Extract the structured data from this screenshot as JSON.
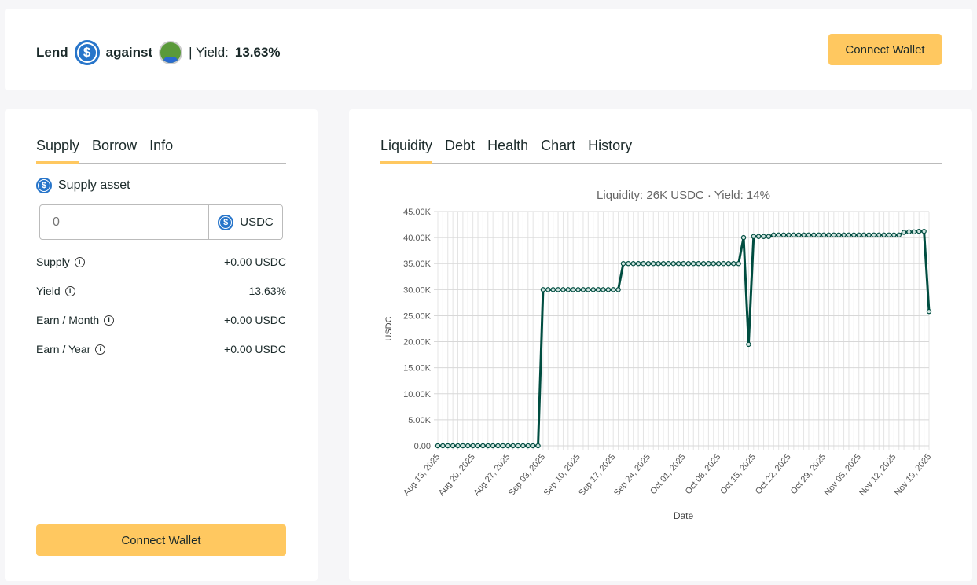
{
  "header": {
    "lend": "Lend",
    "against": "against",
    "yield_label": "| Yield:",
    "yield_value": "13.63%",
    "connect_wallet": "Connect Wallet"
  },
  "left": {
    "tabs": [
      "Supply",
      "Borrow",
      "Info"
    ],
    "supply_asset": "Supply asset",
    "input_placeholder": "0",
    "currency": "USDC",
    "rows": [
      {
        "label": "Supply",
        "value": "+0.00 USDC"
      },
      {
        "label": "Yield",
        "value": "13.63%"
      },
      {
        "label": "Earn / Month",
        "value": "+0.00 USDC"
      },
      {
        "label": "Earn / Year",
        "value": "+0.00 USDC"
      }
    ],
    "connect_wallet": "Connect Wallet"
  },
  "right": {
    "tabs": [
      "Liquidity",
      "Debt",
      "Health",
      "Chart",
      "History"
    ]
  },
  "colors": {
    "accent": "#ffc860",
    "line": "#004d40",
    "usdc": "#2775ca"
  },
  "chart_data": {
    "type": "line",
    "title": "Liquidity: 26K USDC · Yield: 14%",
    "xlabel": "Date",
    "ylabel": "USDC",
    "ylim": [
      0,
      45000
    ],
    "yticks": [
      "0.00",
      "5.00K",
      "10.00K",
      "15.00K",
      "20.00K",
      "25.00K",
      "30.00K",
      "35.00K",
      "40.00K",
      "45.00K"
    ],
    "start_date": "2025-08-13",
    "xticks": [
      "Aug 13, 2025",
      "Aug 20, 2025",
      "Aug 27, 2025",
      "Sep 03, 2025",
      "Sep 10, 2025",
      "Sep 17, 2025",
      "Sep 24, 2025",
      "Oct 01, 2025",
      "Oct 08, 2025",
      "Oct 15, 2025",
      "Oct 22, 2025",
      "Oct 29, 2025",
      "Nov 05, 2025",
      "Nov 12, 2025",
      "Nov 19, 2025"
    ],
    "values": [
      0,
      0,
      0,
      0,
      0,
      0,
      0,
      0,
      0,
      0,
      0,
      0,
      0,
      0,
      0,
      0,
      0,
      0,
      0,
      0,
      0,
      30000,
      30000,
      30000,
      30000,
      30000,
      30000,
      30000,
      30000,
      30000,
      30000,
      30000,
      30000,
      30000,
      30000,
      30000,
      30000,
      35000,
      35000,
      35000,
      35000,
      35000,
      35000,
      35000,
      35000,
      35000,
      35000,
      35000,
      35000,
      35000,
      35000,
      35000,
      35000,
      35000,
      35000,
      35000,
      35000,
      35000,
      35000,
      35000,
      35000,
      40000,
      19500,
      40200,
      40200,
      40200,
      40200,
      40500,
      40500,
      40500,
      40500,
      40500,
      40500,
      40500,
      40500,
      40500,
      40500,
      40500,
      40500,
      40500,
      40500,
      40500,
      40500,
      40500,
      40500,
      40500,
      40500,
      40500,
      40500,
      40500,
      40500,
      40500,
      40500,
      41000,
      41100,
      41100,
      41200,
      41200,
      25800
    ],
    "grid": true,
    "legend": "none"
  }
}
